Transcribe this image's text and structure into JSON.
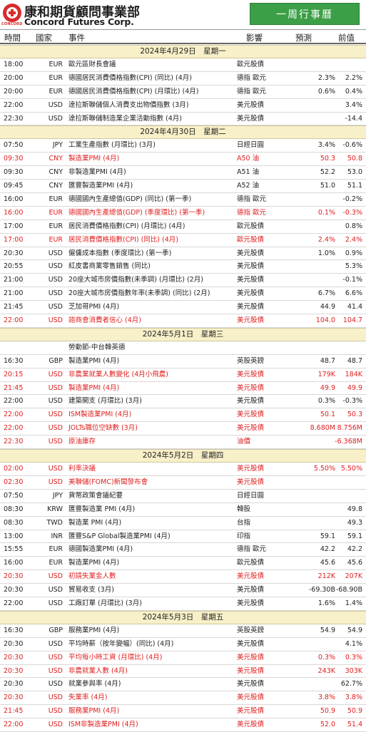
{
  "header": {
    "company_cn": "康和期貨顧問事業部",
    "company_en": "Concord Futures Corp.",
    "logo_text": "CONCORD",
    "badge": "一周行事曆"
  },
  "columns": {
    "time": "時間",
    "country": "國家",
    "event": "事件",
    "impact": "影響",
    "forecast": "預測",
    "previous": "前值"
  },
  "days": [
    {
      "date": "2024年4月29日　星期一",
      "events": [
        {
          "time": "18:00",
          "cur": "EUR",
          "event": "歐元區財長會議",
          "impact": "歐元股債",
          "fc": "",
          "pv": "",
          "red": false
        },
        {
          "time": "20:00",
          "cur": "EUR",
          "event": "德國居民消費價格指數(CPI) (同比) (4月)",
          "impact": "德指 歐元",
          "fc": "2.3%",
          "pv": "2.2%",
          "red": false
        },
        {
          "time": "20:00",
          "cur": "EUR",
          "event": "德國居民消費價格指數(CPI) (月環比) (4月)",
          "impact": "德指 歐元",
          "fc": "0.6%",
          "pv": "0.4%",
          "red": false
        },
        {
          "time": "22:00",
          "cur": "USD",
          "event": "達拉斯聯儲個人消費支出物價指數 (3月)",
          "impact": "美元股債",
          "fc": "",
          "pv": "3.4%",
          "red": false
        },
        {
          "time": "22:30",
          "cur": "USD",
          "event": "達拉斯聯儲制造業企業活動指數 (4月)",
          "impact": "美元股債",
          "fc": "",
          "pv": "-14.4",
          "red": false
        }
      ]
    },
    {
      "date": "2024年4月30日　星期二",
      "events": [
        {
          "time": "07:50",
          "cur": "JPY",
          "event": "工業生產指數 (月環比) (3月)",
          "impact": "日經日圓",
          "fc": "3.4%",
          "pv": "-0.6%",
          "red": false
        },
        {
          "time": "09:30",
          "cur": "CNY",
          "event": "製造業PMI (4月)",
          "impact": "A50 油",
          "fc": "50.3",
          "pv": "50.8",
          "red": true
        },
        {
          "time": "09:30",
          "cur": "CNY",
          "event": "非製造業PMI (4月)",
          "impact": "A51 油",
          "fc": "52.2",
          "pv": "53.0",
          "red": false
        },
        {
          "time": "09:45",
          "cur": "CNY",
          "event": "匯豐製造業PMI (4月)",
          "impact": "A52 油",
          "fc": "51.0",
          "pv": "51.1",
          "red": false
        },
        {
          "time": "16:00",
          "cur": "EUR",
          "event": "德國國內生產總值(GDP) (同比) (第一季)",
          "impact": "德指 歐元",
          "fc": "",
          "pv": "-0.2%",
          "red": false
        },
        {
          "time": "16:00",
          "cur": "EUR",
          "event": "德國國內生產總值(GDP) (季度環比) (第一季)",
          "impact": "德指 歐元",
          "fc": "0.1%",
          "pv": "-0.3%",
          "red": true
        },
        {
          "time": "17:00",
          "cur": "EUR",
          "event": "居民消費價格指數(CPI) (月環比) (4月)",
          "impact": "歐元股債",
          "fc": "",
          "pv": "0.8%",
          "red": false
        },
        {
          "time": "17:00",
          "cur": "EUR",
          "event": "居民消費價格指數(CPI) (同比) (4月)",
          "impact": "歐元股債",
          "fc": "2.4%",
          "pv": "2.4%",
          "red": true
        },
        {
          "time": "20:30",
          "cur": "USD",
          "event": "僱傭成本指數 (季度環比) (第一季)",
          "impact": "美元股債",
          "fc": "1.0%",
          "pv": "0.9%",
          "red": false
        },
        {
          "time": "20:55",
          "cur": "USD",
          "event": "紅皮書商業零售銷售 (同比)",
          "impact": "美元股債",
          "fc": "",
          "pv": "5.3%",
          "red": false
        },
        {
          "time": "21:00",
          "cur": "USD",
          "event": "20座大城市房價指數(未季調) (月環比) (2月)",
          "impact": "美元股債",
          "fc": "",
          "pv": "-0.1%",
          "red": false
        },
        {
          "time": "21:00",
          "cur": "USD",
          "event": "20座大城市房價指數年率(未季調) (同比) (2月)",
          "impact": "美元股債",
          "fc": "6.7%",
          "pv": "6.6%",
          "red": false
        },
        {
          "time": "21:45",
          "cur": "USD",
          "event": "芝加哥PMI (4月)",
          "impact": "美元股債",
          "fc": "44.9",
          "pv": "41.4",
          "red": false
        },
        {
          "time": "22:00",
          "cur": "USD",
          "event": "諮商會消費者信心 (4月)",
          "impact": "美元股債",
          "fc": "104.0",
          "pv": "104.7",
          "red": true
        }
      ]
    },
    {
      "date": "2024年5月1日　星期三",
      "events": [
        {
          "time": "",
          "cur": "",
          "event": "勞動節-中台韓英德",
          "impact": "",
          "fc": "",
          "pv": "",
          "red": false
        },
        {
          "time": "16:30",
          "cur": "GBP",
          "event": "製造業PMI (4月)",
          "impact": "英股英鎊",
          "fc": "48.7",
          "pv": "48.7",
          "red": false
        },
        {
          "time": "20:15",
          "cur": "USD",
          "event": "非農業就業人數變化 (4月小飛農)",
          "impact": "美元股債",
          "fc": "179K",
          "pv": "184K",
          "red": true
        },
        {
          "time": "21:45",
          "cur": "USD",
          "event": "製造業PMI (4月)",
          "impact": "美元股債",
          "fc": "49.9",
          "pv": "49.9",
          "red": true
        },
        {
          "time": "22:00",
          "cur": "USD",
          "event": "建築開支 (月環比) (3月)",
          "impact": "美元股債",
          "fc": "0.3%",
          "pv": "-0.3%",
          "red": false
        },
        {
          "time": "22:00",
          "cur": "USD",
          "event": "ISM製造業PMI (4月)",
          "impact": "美元股債",
          "fc": "50.1",
          "pv": "50.3",
          "red": true
        },
        {
          "time": "22:00",
          "cur": "USD",
          "event": "JOLTs職位空缺數 (3月)",
          "impact": "美元股債",
          "fc": "8.680M",
          "pv": "8.756M",
          "red": true
        },
        {
          "time": "22:30",
          "cur": "USD",
          "event": "原油庫存",
          "impact": "油價",
          "fc": "",
          "pv": "-6.368M",
          "red": true
        }
      ]
    },
    {
      "date": "2024年5月2日　星期四",
      "events": [
        {
          "time": "02:00",
          "cur": "USD",
          "event": "利率決議",
          "impact": "美元股債",
          "fc": "5.50%",
          "pv": "5.50%",
          "red": true
        },
        {
          "time": "02:30",
          "cur": "USD",
          "event": "美聯儲(FOMC)新聞發布會",
          "impact": "美元股債",
          "fc": "",
          "pv": "",
          "red": true
        },
        {
          "time": "07:50",
          "cur": "JPY",
          "event": "貨幣政策會議紀要",
          "impact": "日經日圓",
          "fc": "",
          "pv": "",
          "red": false
        },
        {
          "time": "08:30",
          "cur": "KRW",
          "event": "匯豐製造業 PMI (4月)",
          "impact": "韓股",
          "fc": "",
          "pv": "49.8",
          "red": false
        },
        {
          "time": "08:30",
          "cur": "TWD",
          "event": "製造業 PMI (4月)",
          "impact": "台指",
          "fc": "",
          "pv": "49.3",
          "red": false
        },
        {
          "time": "13:00",
          "cur": "INR",
          "event": "匯豐S&P Global製造業PMI (4月)",
          "impact": "印指",
          "fc": "59.1",
          "pv": "59.1",
          "red": false
        },
        {
          "time": "15:55",
          "cur": "EUR",
          "event": "德國製造業PMI (4月)",
          "impact": "德指 歐元",
          "fc": "42.2",
          "pv": "42.2",
          "red": false
        },
        {
          "time": "16:00",
          "cur": "EUR",
          "event": "製造業PMI (4月)",
          "impact": "歐元股債",
          "fc": "45.6",
          "pv": "45.6",
          "red": false
        },
        {
          "time": "20:30",
          "cur": "USD",
          "event": "初請失業金人數",
          "impact": "美元股債",
          "fc": "212K",
          "pv": "207K",
          "red": true
        },
        {
          "time": "20:30",
          "cur": "USD",
          "event": "貿易收支 (3月)",
          "impact": "美元股債",
          "fc": "-69.30B",
          "pv": "-68.90B",
          "red": false
        },
        {
          "time": "22:00",
          "cur": "USD",
          "event": "工廠訂單 (月環比) (3月)",
          "impact": "美元股債",
          "fc": "1.6%",
          "pv": "1.4%",
          "red": false
        }
      ]
    },
    {
      "date": "2024年5月3日　星期五",
      "events": [
        {
          "time": "16:30",
          "cur": "GBP",
          "event": "服務業PMI (4月)",
          "impact": "英股英鎊",
          "fc": "54.9",
          "pv": "54.9",
          "red": false
        },
        {
          "time": "20:30",
          "cur": "USD",
          "event": "平均時薪（按年變幅）(同比) (4月)",
          "impact": "美元股債",
          "fc": "",
          "pv": "4.1%",
          "red": false
        },
        {
          "time": "20:30",
          "cur": "USD",
          "event": "平均每小時工資 (月環比) (4月)",
          "impact": "美元股債",
          "fc": "0.3%",
          "pv": "0.3%",
          "red": true
        },
        {
          "time": "20:30",
          "cur": "USD",
          "event": "非農就業人數 (4月)",
          "impact": "美元股債",
          "fc": "243K",
          "pv": "303K",
          "red": true
        },
        {
          "time": "20:30",
          "cur": "USD",
          "event": "就業參與率 (4月)",
          "impact": "美元股債",
          "fc": "",
          "pv": "62.7%",
          "red": false
        },
        {
          "time": "20:30",
          "cur": "USD",
          "event": "失業率 (4月)",
          "impact": "美元股債",
          "fc": "3.8%",
          "pv": "3.8%",
          "red": true
        },
        {
          "time": "21:45",
          "cur": "USD",
          "event": "服務業PMI (4月)",
          "impact": "美元股債",
          "fc": "50.9",
          "pv": "50.9",
          "red": true
        },
        {
          "time": "22:00",
          "cur": "USD",
          "event": "ISM非製造業PMI (4月)",
          "impact": "美元股債",
          "fc": "52.0",
          "pv": "51.4",
          "red": true
        }
      ]
    }
  ]
}
